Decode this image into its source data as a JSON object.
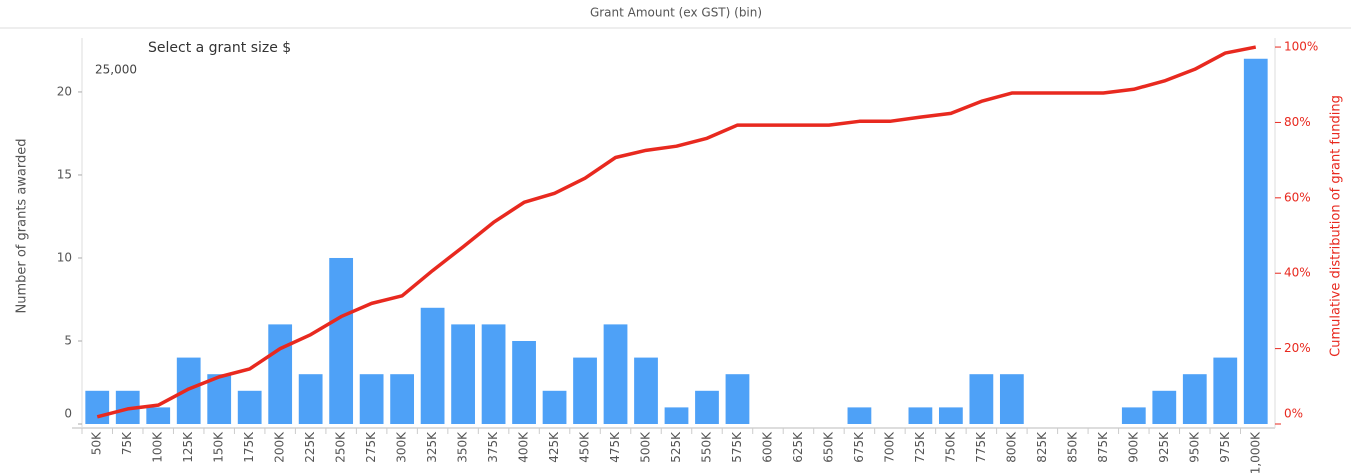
{
  "chart_data": {
    "type": "combo",
    "title": "Grant Amount (ex GST) (bin)",
    "annotations": [
      "Select a grant size $",
      "25,000"
    ],
    "y_label": "Number of grants awarded",
    "y2_label": "Cumulative distribution of grant funding",
    "categories": [
      "50K",
      "75K",
      "100K",
      "125K",
      "150K",
      "175K",
      "200K",
      "225K",
      "250K",
      "275K",
      "300K",
      "325K",
      "350K",
      "375K",
      "400K",
      "425K",
      "450K",
      "475K",
      "500K",
      "525K",
      "550K",
      "575K",
      "600K",
      "625K",
      "650K",
      "675K",
      "700K",
      "725K",
      "750K",
      "775K",
      "800K",
      "825K",
      "850K",
      "875K",
      "900K",
      "925K",
      "950K",
      "975K",
      "1,000K"
    ],
    "series": [
      {
        "name": "Number of grants awarded",
        "type": "bar",
        "axis": "y",
        "color": "#4ea1f7",
        "values": [
          2,
          2,
          1,
          4,
          3,
          2,
          6,
          3,
          10,
          3,
          3,
          7,
          6,
          6,
          5,
          2,
          4,
          6,
          4,
          1,
          2,
          3,
          0,
          0,
          0,
          1,
          0,
          1,
          1,
          3,
          3,
          0,
          0,
          0,
          1,
          2,
          3,
          4,
          22
        ]
      },
      {
        "name": "Cumulative distribution of grant funding",
        "type": "line",
        "axis": "y2",
        "color": "#e8291f",
        "values": [
          1.9,
          4,
          5,
          9.3,
          12.5,
          14.6,
          20,
          23.7,
          28.5,
          32,
          34,
          40.7,
          47,
          53.5,
          58.8,
          61.2,
          65.2,
          70.7,
          72.6,
          73.7,
          75.8,
          79.3,
          79.3,
          79.3,
          79.3,
          80.3,
          80.3,
          81.4,
          82.4,
          85.6,
          87.8,
          87.8,
          87.8,
          87.8,
          88.8,
          91,
          94.1,
          98.4,
          100
        ]
      }
    ],
    "ylim": [
      0,
      23.25
    ],
    "yticks": [
      0,
      5,
      10,
      15,
      20
    ],
    "y2lim": [
      0,
      102.4
    ],
    "y2ticks": [
      {
        "value": 0,
        "label": "0%"
      },
      {
        "value": 20,
        "label": "20%"
      },
      {
        "value": 40,
        "label": "40%"
      },
      {
        "value": 60,
        "label": "60%"
      },
      {
        "value": 80,
        "label": "80%"
      },
      {
        "value": 100,
        "label": "100%"
      }
    ],
    "y2_color": "#e8291f"
  }
}
